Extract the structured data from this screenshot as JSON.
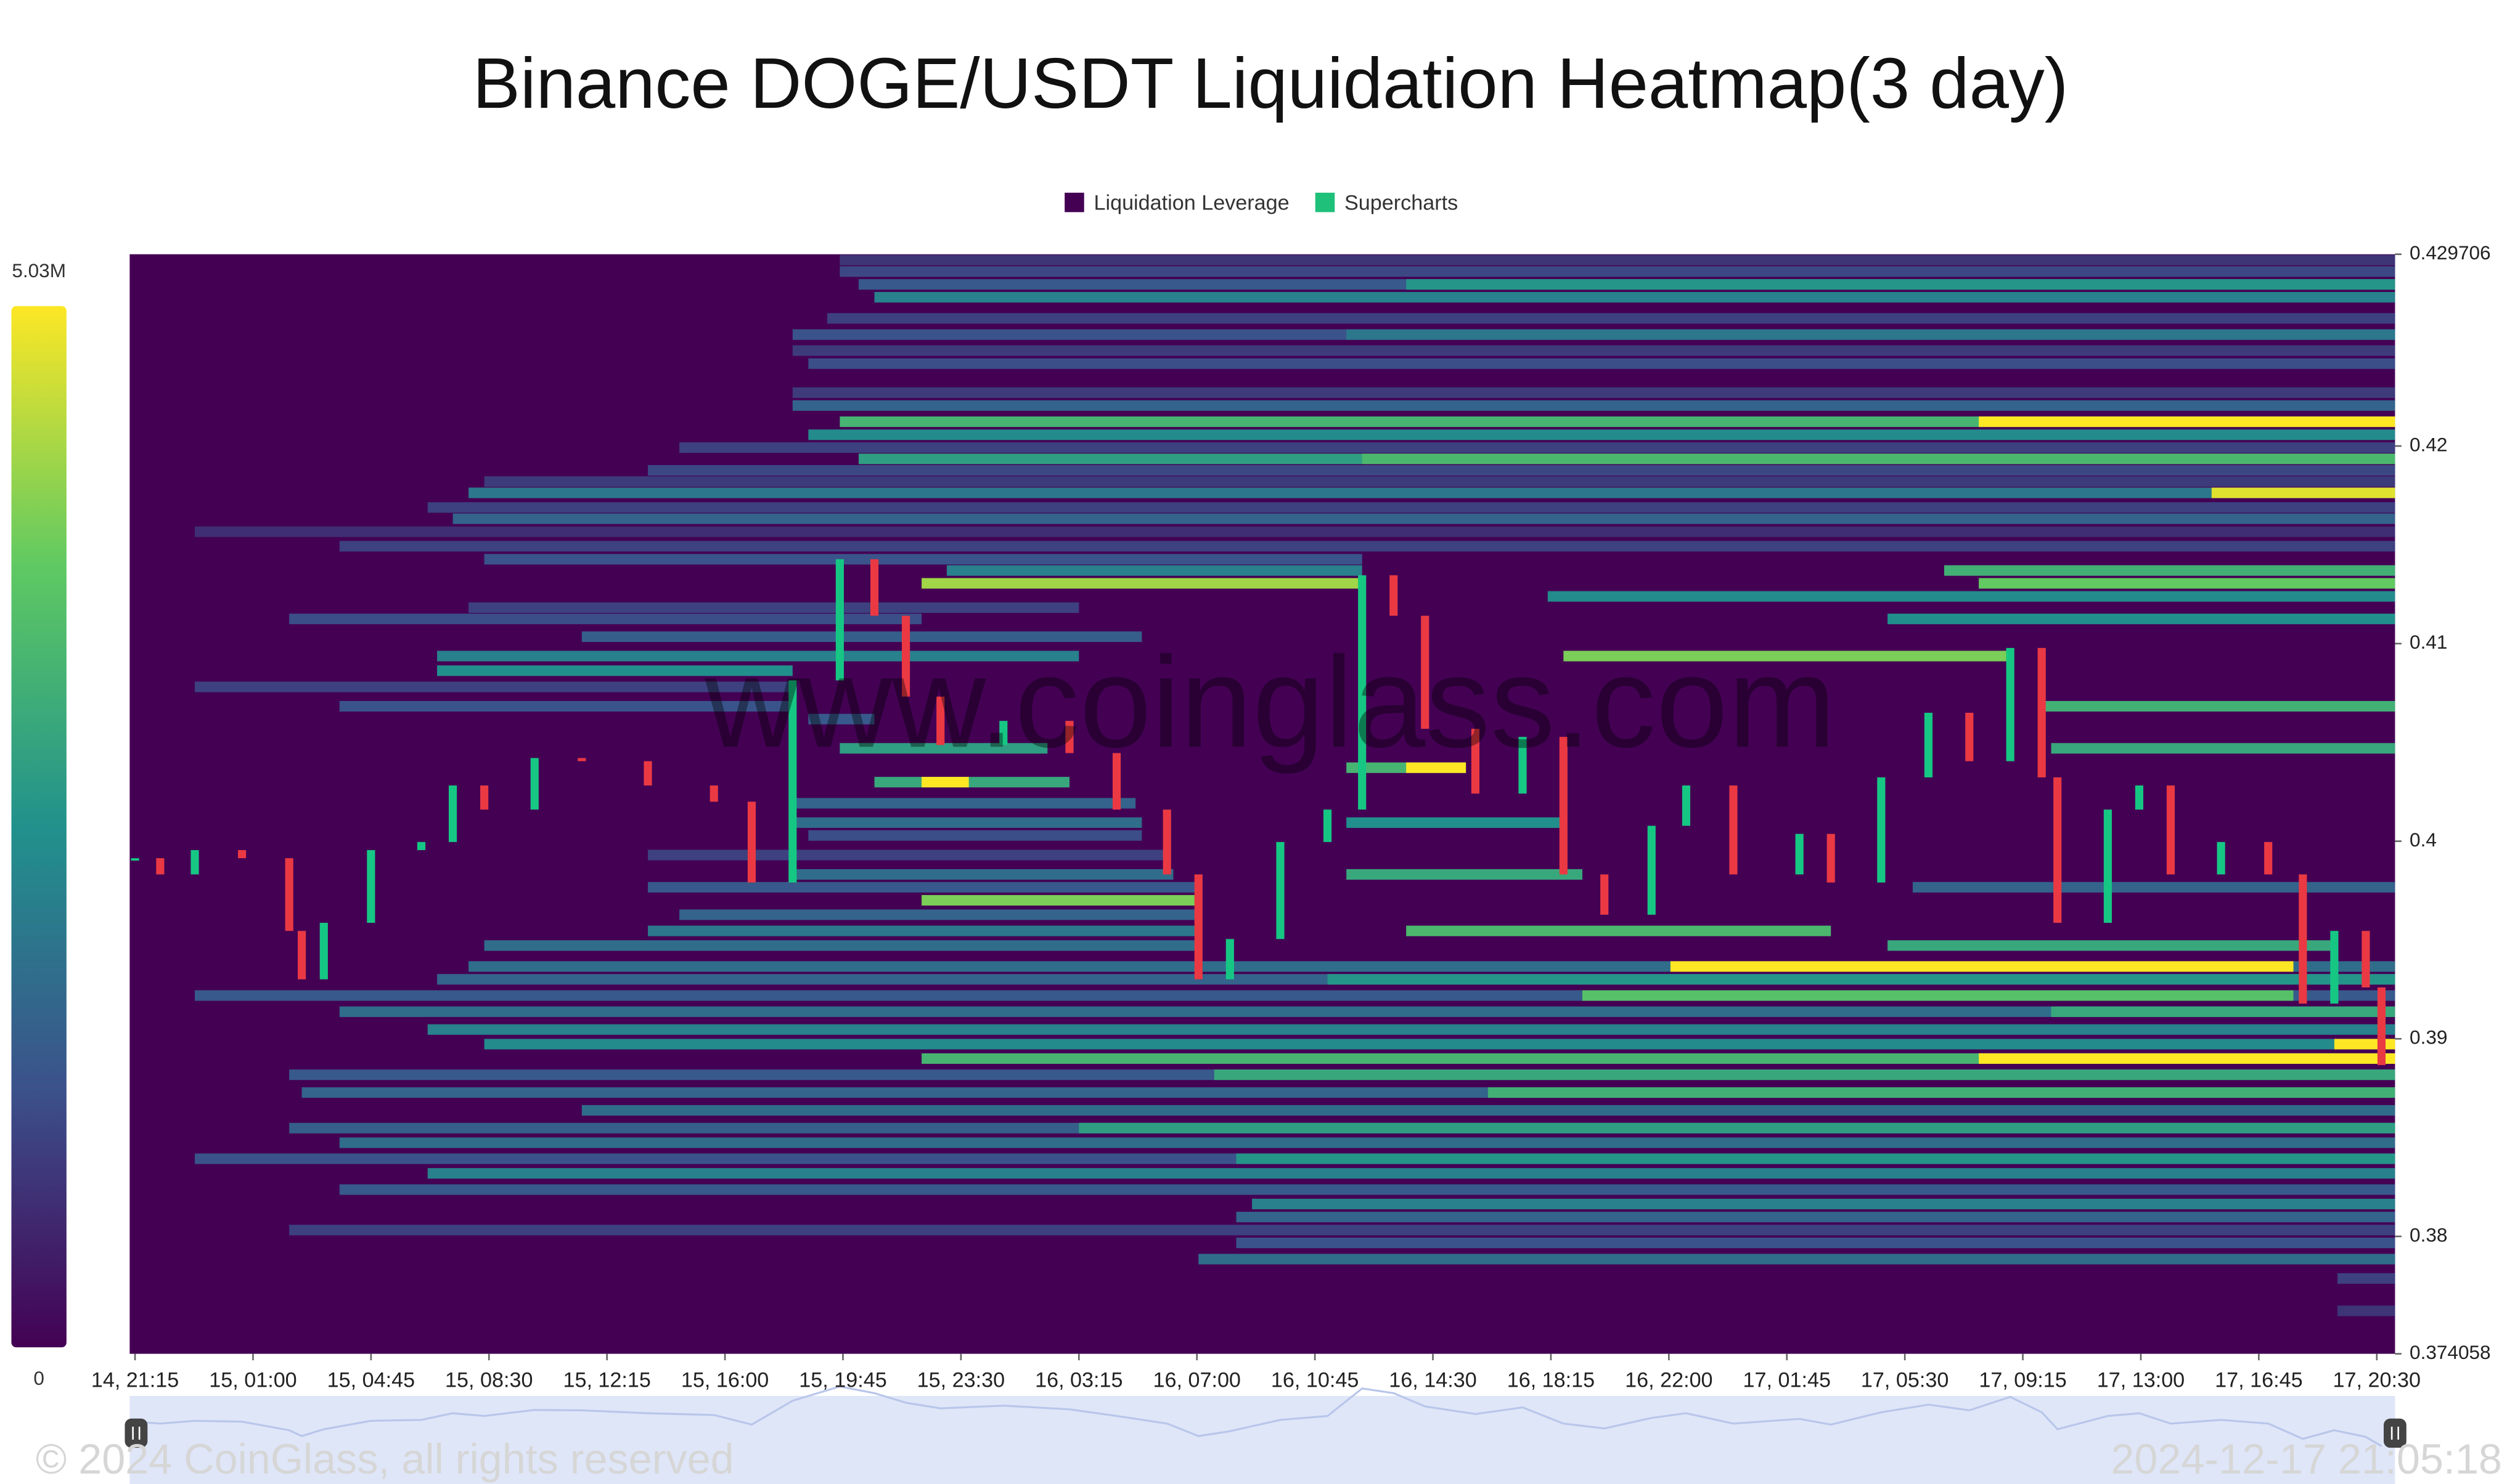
{
  "chart_data": {
    "type": "heatmap",
    "title": "Binance DOGE/USDT Liquidation Heatmap(3 day)",
    "legend": [
      {
        "name": "Liquidation Leverage",
        "color": "#440154"
      },
      {
        "name": "Supercharts",
        "color": "#1fc07a"
      }
    ],
    "watermark": "www.coinglass.com",
    "copyright": "© 2024 CoinGlass, all rights reserved",
    "timestamp": "2024-12-17 21:05:18",
    "xlim": [
      -0.17,
      71.83
    ],
    "xticks": [
      {
        "value": 0,
        "label": "14, 21:15"
      },
      {
        "value": 3.75,
        "label": "15, 01:00"
      },
      {
        "value": 7.5,
        "label": "15, 04:45"
      },
      {
        "value": 11.25,
        "label": "15, 08:30"
      },
      {
        "value": 15,
        "label": "15, 12:15"
      },
      {
        "value": 18.75,
        "label": "15, 16:00"
      },
      {
        "value": 22.5,
        "label": "15, 19:45"
      },
      {
        "value": 26.25,
        "label": "15, 23:30"
      },
      {
        "value": 30,
        "label": "16, 03:15"
      },
      {
        "value": 33.75,
        "label": "16, 07:00"
      },
      {
        "value": 37.5,
        "label": "16, 10:45"
      },
      {
        "value": 41.25,
        "label": "16, 14:30"
      },
      {
        "value": 45,
        "label": "16, 18:15"
      },
      {
        "value": 48.75,
        "label": "16, 22:00"
      },
      {
        "value": 52.5,
        "label": "17, 01:45"
      },
      {
        "value": 56.25,
        "label": "17, 05:30"
      },
      {
        "value": 60,
        "label": "17, 09:15"
      },
      {
        "value": 63.75,
        "label": "17, 13:00"
      },
      {
        "value": 67.5,
        "label": "17, 16:45"
      },
      {
        "value": 71.25,
        "label": "17, 20:30"
      }
    ],
    "ylim": [
      0.374058,
      0.429706
    ],
    "yticks": [
      0.374058,
      0.38,
      0.39,
      0.4,
      0.41,
      0.42,
      0.429706
    ],
    "colorbar": {
      "lim": [
        0,
        5030000
      ],
      "ticks": [
        0,
        {
          "value": 5030000,
          "label": "5.03M"
        }
      ],
      "colors": [
        "#440154",
        "#3b528b",
        "#21918c",
        "#5ec962",
        "#fde725"
      ]
    },
    "up_color": "#16c784",
    "down_color": "#ea3943",
    "levels": [
      {
        "price": 0.42941,
        "start": 22.4,
        "end": 71.83,
        "value": 800000
      },
      {
        "price": 0.42883,
        "start": 22.4,
        "end": 71.83,
        "value": 1100000
      },
      {
        "price": 0.42818,
        "start": 23.0,
        "end": 71.83,
        "value": 1400000
      },
      {
        "price": 0.42818,
        "start": 40.4,
        "end": 71.83,
        "value": 2600000
      },
      {
        "price": 0.42753,
        "start": 23.5,
        "end": 71.83,
        "value": 2200000
      },
      {
        "price": 0.42646,
        "start": 22.0,
        "end": 71.83,
        "value": 1000000
      },
      {
        "price": 0.42564,
        "start": 20.9,
        "end": 71.83,
        "value": 1300000
      },
      {
        "price": 0.42564,
        "start": 38.5,
        "end": 71.83,
        "value": 2000000
      },
      {
        "price": 0.42483,
        "start": 20.9,
        "end": 71.83,
        "value": 900000
      },
      {
        "price": 0.42417,
        "start": 21.4,
        "end": 71.83,
        "value": 1200000
      },
      {
        "price": 0.4227,
        "start": 20.9,
        "end": 71.83,
        "value": 900000
      },
      {
        "price": 0.42205,
        "start": 20.9,
        "end": 71.83,
        "value": 1600000
      },
      {
        "price": 0.42123,
        "start": 22.4,
        "end": 71.83,
        "value": 3300000
      },
      {
        "price": 0.42123,
        "start": 58.6,
        "end": 71.83,
        "value": 5030000
      },
      {
        "price": 0.42057,
        "start": 21.4,
        "end": 71.83,
        "value": 2400000
      },
      {
        "price": 0.41992,
        "start": 17.3,
        "end": 71.83,
        "value": 1000000
      },
      {
        "price": 0.41935,
        "start": 23.0,
        "end": 71.83,
        "value": 2800000
      },
      {
        "price": 0.41935,
        "start": 39.0,
        "end": 71.83,
        "value": 3400000
      },
      {
        "price": 0.41877,
        "start": 16.3,
        "end": 71.83,
        "value": 1100000
      },
      {
        "price": 0.4182,
        "start": 11.1,
        "end": 71.83,
        "value": 900000
      },
      {
        "price": 0.41763,
        "start": 10.6,
        "end": 71.83,
        "value": 2000000
      },
      {
        "price": 0.41763,
        "start": 66.0,
        "end": 71.83,
        "value": 4800000
      },
      {
        "price": 0.41689,
        "start": 9.3,
        "end": 71.83,
        "value": 1000000
      },
      {
        "price": 0.41632,
        "start": 10.1,
        "end": 71.83,
        "value": 1600000
      },
      {
        "price": 0.41566,
        "start": 1.9,
        "end": 71.83,
        "value": 700000
      },
      {
        "price": 0.41493,
        "start": 6.5,
        "end": 71.83,
        "value": 1000000
      },
      {
        "price": 0.41427,
        "start": 11.1,
        "end": 39.0,
        "value": 1300000
      },
      {
        "price": 0.4137,
        "start": 25.8,
        "end": 39.0,
        "value": 2200000
      },
      {
        "price": 0.4137,
        "start": 57.5,
        "end": 71.83,
        "value": 3200000
      },
      {
        "price": 0.41305,
        "start": 25.0,
        "end": 39.0,
        "value": 4300000
      },
      {
        "price": 0.41305,
        "start": 58.6,
        "end": 71.83,
        "value": 3800000
      },
      {
        "price": 0.41239,
        "start": 44.9,
        "end": 71.83,
        "value": 2400000
      },
      {
        "price": 0.41182,
        "start": 10.6,
        "end": 30.0,
        "value": 1000000
      },
      {
        "price": 0.41125,
        "start": 4.9,
        "end": 25.0,
        "value": 1200000
      },
      {
        "price": 0.41125,
        "start": 55.7,
        "end": 71.83,
        "value": 2500000
      },
      {
        "price": 0.41035,
        "start": 14.2,
        "end": 32.0,
        "value": 1500000
      },
      {
        "price": 0.40937,
        "start": 9.6,
        "end": 30.0,
        "value": 2200000
      },
      {
        "price": 0.40937,
        "start": 45.4,
        "end": 59.6,
        "value": 4000000
      },
      {
        "price": 0.40863,
        "start": 9.6,
        "end": 20.9,
        "value": 2500000
      },
      {
        "price": 0.40781,
        "start": 1.9,
        "end": 20.9,
        "value": 1000000
      },
      {
        "price": 0.40683,
        "start": 6.5,
        "end": 20.9,
        "value": 1300000
      },
      {
        "price": 0.40683,
        "start": 60.6,
        "end": 71.83,
        "value": 3200000
      },
      {
        "price": 0.40618,
        "start": 21.4,
        "end": 23.5,
        "value": 1400000
      },
      {
        "price": 0.4047,
        "start": 22.4,
        "end": 29.0,
        "value": 2800000
      },
      {
        "price": 0.4047,
        "start": 60.9,
        "end": 71.83,
        "value": 3000000
      },
      {
        "price": 0.40372,
        "start": 38.5,
        "end": 42.3,
        "value": 3300000
      },
      {
        "price": 0.40372,
        "start": 40.4,
        "end": 42.3,
        "value": 5030000
      },
      {
        "price": 0.40299,
        "start": 23.5,
        "end": 29.7,
        "value": 3000000
      },
      {
        "price": 0.40299,
        "start": 25.0,
        "end": 26.5,
        "value": 5030000
      },
      {
        "price": 0.40192,
        "start": 20.9,
        "end": 31.8,
        "value": 1600000
      },
      {
        "price": 0.40094,
        "start": 20.9,
        "end": 32.0,
        "value": 1800000
      },
      {
        "price": 0.40094,
        "start": 38.5,
        "end": 45.4,
        "value": 2500000
      },
      {
        "price": 0.40029,
        "start": 21.4,
        "end": 32.0,
        "value": 1200000
      },
      {
        "price": 0.3993,
        "start": 16.3,
        "end": 32.8,
        "value": 1000000
      },
      {
        "price": 0.39832,
        "start": 20.9,
        "end": 33.0,
        "value": 1800000
      },
      {
        "price": 0.39832,
        "start": 38.5,
        "end": 46.0,
        "value": 3000000
      },
      {
        "price": 0.39767,
        "start": 16.3,
        "end": 33.8,
        "value": 1400000
      },
      {
        "price": 0.39767,
        "start": 56.5,
        "end": 71.83,
        "value": 1600000
      },
      {
        "price": 0.39701,
        "start": 25.0,
        "end": 33.8,
        "value": 4000000
      },
      {
        "price": 0.39628,
        "start": 17.3,
        "end": 33.8,
        "value": 1600000
      },
      {
        "price": 0.39546,
        "start": 16.3,
        "end": 33.8,
        "value": 2000000
      },
      {
        "price": 0.39546,
        "start": 40.4,
        "end": 53.9,
        "value": 3400000
      },
      {
        "price": 0.39472,
        "start": 11.1,
        "end": 33.8,
        "value": 1800000
      },
      {
        "price": 0.39472,
        "start": 55.7,
        "end": 69.9,
        "value": 3000000
      },
      {
        "price": 0.39366,
        "start": 10.6,
        "end": 71.83,
        "value": 1800000
      },
      {
        "price": 0.39366,
        "start": 48.8,
        "end": 68.6,
        "value": 5030000
      },
      {
        "price": 0.39301,
        "start": 9.6,
        "end": 71.83,
        "value": 1600000
      },
      {
        "price": 0.39301,
        "start": 37.9,
        "end": 71.83,
        "value": 2600000
      },
      {
        "price": 0.39219,
        "start": 1.9,
        "end": 71.83,
        "value": 1400000
      },
      {
        "price": 0.39219,
        "start": 46.0,
        "end": 68.6,
        "value": 3600000
      },
      {
        "price": 0.39137,
        "start": 6.5,
        "end": 71.83,
        "value": 1800000
      },
      {
        "price": 0.39137,
        "start": 60.9,
        "end": 71.83,
        "value": 3000000
      },
      {
        "price": 0.39047,
        "start": 9.3,
        "end": 71.83,
        "value": 2200000
      },
      {
        "price": 0.38973,
        "start": 11.1,
        "end": 71.83,
        "value": 2400000
      },
      {
        "price": 0.38973,
        "start": 69.9,
        "end": 71.83,
        "value": 5030000
      },
      {
        "price": 0.389,
        "start": 25.0,
        "end": 71.83,
        "value": 3300000
      },
      {
        "price": 0.389,
        "start": 58.6,
        "end": 71.83,
        "value": 5030000
      },
      {
        "price": 0.38818,
        "start": 4.9,
        "end": 71.83,
        "value": 1400000
      },
      {
        "price": 0.38818,
        "start": 34.3,
        "end": 71.83,
        "value": 3000000
      },
      {
        "price": 0.38728,
        "start": 5.3,
        "end": 71.83,
        "value": 1600000
      },
      {
        "price": 0.38728,
        "start": 43.0,
        "end": 71.83,
        "value": 3200000
      },
      {
        "price": 0.38638,
        "start": 14.2,
        "end": 71.83,
        "value": 1800000
      },
      {
        "price": 0.38548,
        "start": 4.9,
        "end": 71.83,
        "value": 1500000
      },
      {
        "price": 0.38548,
        "start": 30.0,
        "end": 71.83,
        "value": 2800000
      },
      {
        "price": 0.38474,
        "start": 6.5,
        "end": 71.83,
        "value": 1800000
      },
      {
        "price": 0.38393,
        "start": 1.9,
        "end": 71.83,
        "value": 1300000
      },
      {
        "price": 0.38393,
        "start": 35.0,
        "end": 71.83,
        "value": 2600000
      },
      {
        "price": 0.38319,
        "start": 9.3,
        "end": 71.83,
        "value": 2200000
      },
      {
        "price": 0.38237,
        "start": 6.5,
        "end": 71.83,
        "value": 1400000
      },
      {
        "price": 0.38164,
        "start": 35.5,
        "end": 71.83,
        "value": 2200000
      },
      {
        "price": 0.38098,
        "start": 35.0,
        "end": 71.83,
        "value": 1600000
      },
      {
        "price": 0.38032,
        "start": 4.9,
        "end": 71.83,
        "value": 1000000
      },
      {
        "price": 0.37967,
        "start": 35.0,
        "end": 71.83,
        "value": 1300000
      },
      {
        "price": 0.37885,
        "start": 33.8,
        "end": 71.83,
        "value": 1800000
      },
      {
        "price": 0.37787,
        "start": 70.0,
        "end": 71.83,
        "value": 1000000
      },
      {
        "price": 0.37623,
        "start": 70.0,
        "end": 71.83,
        "value": 800000
      }
    ],
    "price": {
      "x": [
        0,
        0.8,
        1.9,
        3.4,
        4.9,
        5.3,
        6.0,
        7.5,
        9.1,
        10.1,
        11.1,
        12.7,
        14.2,
        16.3,
        18.4,
        19.6,
        20.9,
        22.4,
        23.5,
        24.5,
        25.6,
        27.6,
        29.7,
        31.2,
        32.8,
        33.8,
        34.8,
        36.4,
        37.9,
        39.0,
        40.0,
        41.0,
        42.6,
        44.1,
        45.4,
        46.7,
        48.2,
        49.3,
        50.8,
        52.9,
        53.9,
        55.5,
        57.0,
        58.3,
        59.6,
        60.6,
        61.1,
        62.7,
        63.7,
        64.7,
        66.3,
        67.8,
        68.9,
        69.9,
        70.9,
        71.4
      ],
      "values": [
        0.39914,
        0.39832,
        0.39955,
        0.39914,
        0.39546,
        0.39301,
        0.39587,
        0.39955,
        0.39996,
        0.40282,
        0.4016,
        0.40421,
        0.40405,
        0.40282,
        0.402,
        0.39791,
        0.40814,
        0.41427,
        0.41141,
        0.40732,
        0.40487,
        0.40609,
        0.40446,
        0.4016,
        0.39832,
        0.39301,
        0.39505,
        0.39996,
        0.4016,
        0.41346,
        0.41141,
        0.40569,
        0.40241,
        0.40528,
        0.39832,
        0.39628,
        0.40078,
        0.40282,
        0.39832,
        0.40037,
        0.39791,
        0.40323,
        0.4065,
        0.40405,
        0.40978,
        0.40323,
        0.39587,
        0.4016,
        0.40282,
        0.39832,
        0.39996,
        0.39832,
        0.39178,
        0.39546,
        0.3926,
        0.38867
      ]
    }
  }
}
